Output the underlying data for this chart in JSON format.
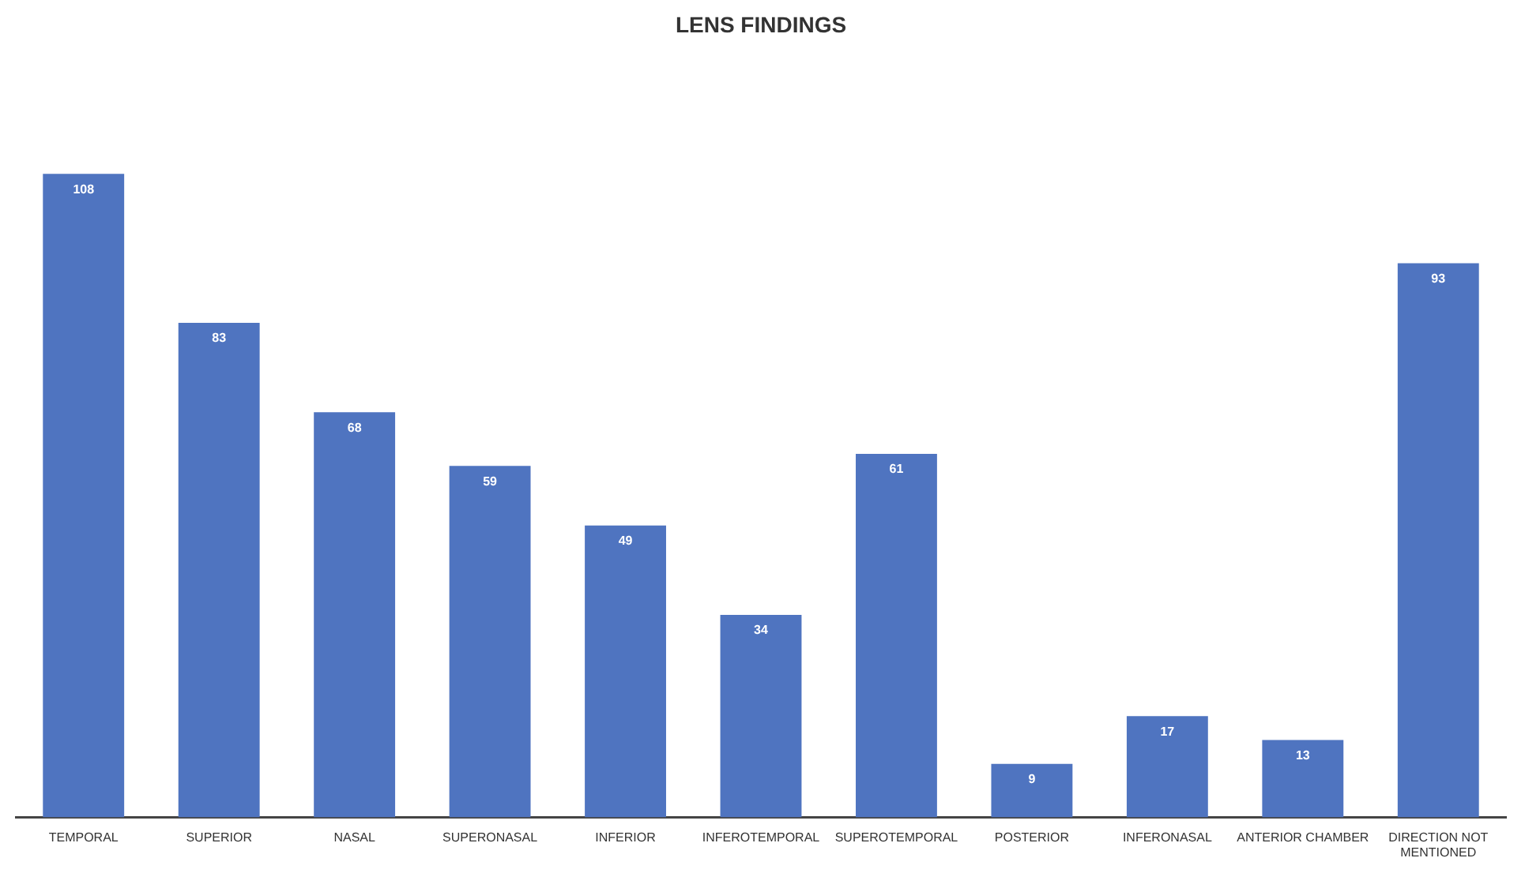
{
  "chart_data": {
    "type": "bar",
    "title": "LENS FINDINGS",
    "categories": [
      "TEMPORAL",
      "SUPERIOR",
      "NASAL",
      "SUPERONASAL",
      "INFERIOR",
      "INFEROTEMPORAL",
      "SUPEROTEMPORAL",
      "POSTERIOR",
      "INFERONASAL",
      "ANTERIOR CHAMBER",
      "DIRECTION NOT MENTIONED"
    ],
    "values": [
      108,
      83,
      68,
      59,
      49,
      34,
      61,
      9,
      17,
      13,
      93
    ],
    "color": "#4f74c0",
    "data_labels": true,
    "grid": false,
    "legend": false
  }
}
